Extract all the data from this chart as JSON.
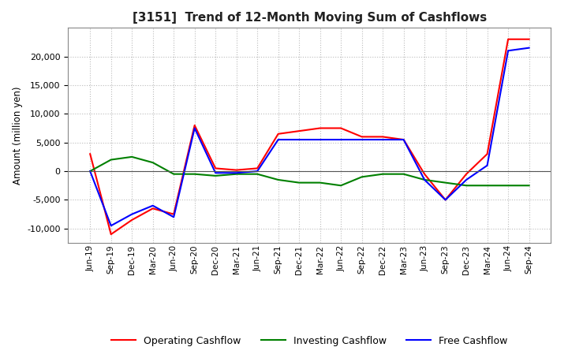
{
  "title": "[3151]  Trend of 12-Month Moving Sum of Cashflows",
  "ylabel": "Amount (million yen)",
  "x_labels": [
    "Jun-19",
    "Sep-19",
    "Dec-19",
    "Mar-20",
    "Jun-20",
    "Sep-20",
    "Dec-20",
    "Mar-21",
    "Jun-21",
    "Sep-21",
    "Dec-21",
    "Mar-22",
    "Jun-22",
    "Sep-22",
    "Dec-22",
    "Mar-23",
    "Jun-23",
    "Sep-23",
    "Dec-23",
    "Mar-24",
    "Jun-24",
    "Sep-24"
  ],
  "operating_cashflow": [
    3000,
    -11000,
    -8500,
    -6500,
    -7500,
    8000,
    500,
    200,
    500,
    6500,
    7000,
    7500,
    7500,
    6000,
    6000,
    5500,
    -500,
    -5000,
    -500,
    3000,
    23000,
    23000
  ],
  "investing_cashflow": [
    0,
    2000,
    2500,
    1500,
    -500,
    -500,
    -800,
    -500,
    -500,
    -1500,
    -2000,
    -2000,
    -2500,
    -1000,
    -500,
    -500,
    -1500,
    -2000,
    -2500,
    -2500,
    -2500,
    -2500
  ],
  "free_cashflow": [
    0,
    -9500,
    -7500,
    -6000,
    -8000,
    7500,
    -300,
    -300,
    0,
    5500,
    5500,
    5500,
    5500,
    5500,
    5500,
    5500,
    -1500,
    -5000,
    -1500,
    1000,
    21000,
    21500
  ],
  "operating_color": "#FF0000",
  "investing_color": "#008000",
  "free_color": "#0000FF",
  "ylim": [
    -12500,
    25000
  ],
  "yticks": [
    -10000,
    -5000,
    0,
    5000,
    10000,
    15000,
    20000
  ],
  "background_color": "#FFFFFF",
  "grid_color": "#BBBBBB"
}
